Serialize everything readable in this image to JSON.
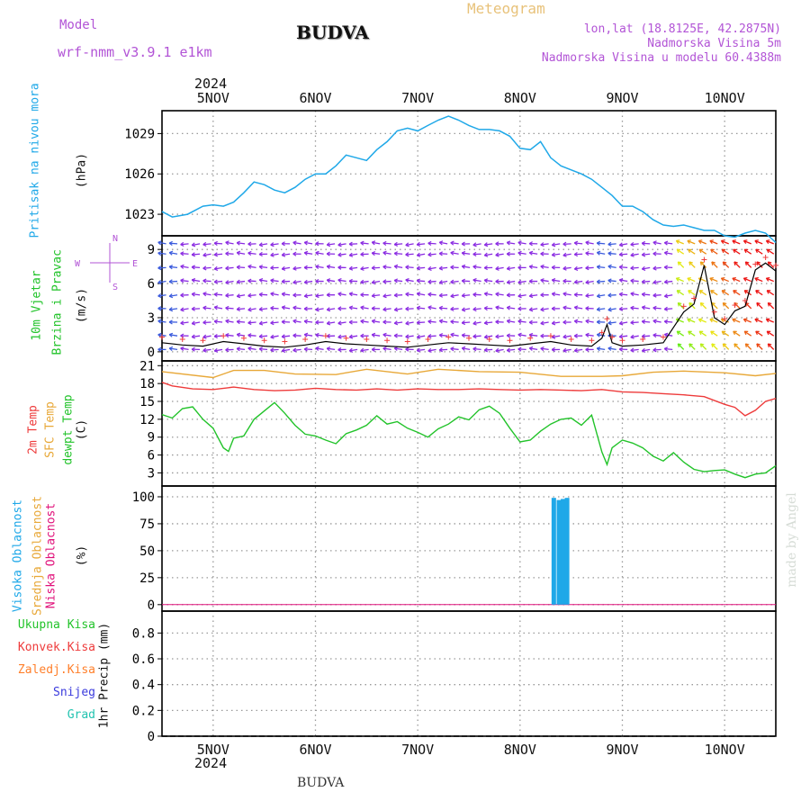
{
  "header": {
    "model_label": "Model",
    "model_name": "wrf-nmm_v3.9.1 e1km",
    "title": "BUDVA",
    "product": "Meteogram",
    "lonlat": "lon,lat (18.8125E, 42.2875N)",
    "elevation": "Nadmorska Visina 5m",
    "model_elevation": "Nadmorska Visina u modelu 60.4388m",
    "footer_title": "BUDVA",
    "watermark": "made by Angel"
  },
  "time_axis": {
    "year": "2024",
    "days": [
      "5NOV",
      "6NOV",
      "7NOV",
      "8NOV",
      "9NOV",
      "10NOV"
    ],
    "range_days": [
      4.5,
      10.5
    ]
  },
  "colors": {
    "pressure": "#1fa8e8",
    "wind_title": "#22c32a",
    "wind_arrows": "#8a2be2",
    "temp2m": "#ee3b3b",
    "sfc": "#e8a838",
    "dewpt": "#22c32a",
    "high_cloud": "#1fa8e8",
    "mid_cloud": "#e8a838",
    "low_cloud": "#e0107a",
    "rain": "#22c32a",
    "conv": "#ee3b3b",
    "freezing": "#ff7f2a",
    "snow": "#3b3bdd",
    "hail": "#22c3b0",
    "header_purple": "#b254d6"
  },
  "chart_data": [
    {
      "type": "line",
      "id": "pressure",
      "ylabel": [
        "Pritisak na nivou mora",
        "(hPa)"
      ],
      "yticks": [
        1023,
        1026,
        1029
      ],
      "ylim": [
        1021.4,
        1030.7
      ],
      "series": [
        {
          "name": "Pritisak na nivou mora",
          "x": [
            4.5,
            4.6,
            4.75,
            4.9,
            5.0,
            5.1,
            5.2,
            5.3,
            5.4,
            5.5,
            5.6,
            5.7,
            5.8,
            5.9,
            6.0,
            6.1,
            6.2,
            6.3,
            6.4,
            6.5,
            6.6,
            6.7,
            6.8,
            6.9,
            7.0,
            7.1,
            7.2,
            7.3,
            7.4,
            7.5,
            7.6,
            7.7,
            7.8,
            7.9,
            8.0,
            8.1,
            8.2,
            8.3,
            8.4,
            8.5,
            8.6,
            8.7,
            8.8,
            8.9,
            9.0,
            9.1,
            9.2,
            9.3,
            9.4,
            9.5,
            9.6,
            9.7,
            9.8,
            9.9,
            10.0,
            10.1,
            10.2,
            10.3,
            10.4,
            10.5
          ],
          "values": [
            1023.2,
            1022.8,
            1023.0,
            1023.6,
            1023.7,
            1023.6,
            1023.9,
            1024.6,
            1025.4,
            1025.2,
            1024.8,
            1024.6,
            1025.0,
            1025.6,
            1026.0,
            1026.0,
            1026.6,
            1027.4,
            1027.2,
            1027.0,
            1027.8,
            1028.4,
            1029.2,
            1029.4,
            1029.2,
            1029.6,
            1030.0,
            1030.3,
            1030.0,
            1029.6,
            1029.3,
            1029.3,
            1029.2,
            1028.8,
            1027.9,
            1027.8,
            1028.4,
            1027.2,
            1026.6,
            1026.3,
            1026.0,
            1025.6,
            1025.0,
            1024.4,
            1023.6,
            1023.6,
            1023.2,
            1022.6,
            1022.2,
            1022.1,
            1022.2,
            1022.0,
            1021.8,
            1021.8,
            1021.4,
            1021.3,
            1021.6,
            1021.8,
            1021.6,
            1020.9
          ]
        }
      ]
    },
    {
      "type": "line",
      "id": "wind",
      "ylabel": [
        "10m Vjetar",
        "Brzina i Pravac",
        "(m/s)"
      ],
      "compass": {
        "n": "N",
        "e": "E",
        "s": "S",
        "w": "W"
      },
      "yticks": [
        0,
        3,
        6,
        9
      ],
      "ylim": [
        -0.8,
        10.2
      ],
      "arrow_levels": [
        0.2,
        1.4,
        2.6,
        3.8,
        5.0,
        6.2,
        7.4,
        8.6,
        9.5
      ],
      "series": [
        {
          "name": "10m Vjetar",
          "x": [
            4.5,
            4.7,
            4.9,
            5.1,
            5.3,
            5.5,
            5.7,
            5.9,
            6.1,
            6.3,
            6.5,
            6.7,
            6.9,
            7.1,
            7.3,
            7.5,
            7.7,
            7.9,
            8.1,
            8.3,
            8.5,
            8.7,
            8.8,
            8.85,
            8.9,
            9.0,
            9.2,
            9.4,
            9.6,
            9.7,
            9.8,
            9.9,
            10.0,
            10.1,
            10.2,
            10.3,
            10.4,
            10.5
          ],
          "values": [
            0.8,
            0.6,
            0.5,
            0.9,
            0.7,
            0.5,
            0.4,
            0.6,
            0.9,
            0.7,
            0.6,
            0.5,
            0.4,
            0.6,
            0.8,
            0.7,
            0.6,
            0.5,
            0.7,
            0.9,
            0.6,
            0.5,
            1.2,
            2.4,
            0.8,
            0.5,
            0.6,
            0.8,
            3.5,
            4.2,
            7.6,
            3.0,
            2.4,
            3.6,
            4.0,
            7.2,
            7.8,
            7.1
          ]
        }
      ]
    },
    {
      "type": "line",
      "id": "temperature",
      "ylabel": [
        "2m Temp",
        "SFC Temp",
        "dewpt Temp",
        "(C)"
      ],
      "yticks": [
        3,
        6,
        9,
        12,
        15,
        18,
        21
      ],
      "ylim": [
        0.8,
        21.8
      ],
      "series": [
        {
          "name": "SFC Temp",
          "x": [
            4.5,
            5.0,
            5.2,
            5.5,
            5.8,
            6.2,
            6.5,
            6.9,
            7.2,
            7.6,
            8.0,
            8.4,
            8.8,
            9.0,
            9.3,
            9.6,
            10.0,
            10.3,
            10.5
          ],
          "values": [
            20.0,
            19.0,
            20.2,
            20.2,
            19.6,
            19.5,
            20.4,
            19.6,
            20.4,
            20.0,
            19.9,
            19.2,
            19.2,
            19.3,
            19.9,
            20.1,
            19.8,
            19.3,
            19.7
          ]
        },
        {
          "name": "2m Temp",
          "x": [
            4.5,
            4.6,
            4.8,
            5.0,
            5.2,
            5.4,
            5.6,
            5.8,
            6.0,
            6.2,
            6.4,
            6.6,
            6.8,
            7.0,
            7.2,
            7.4,
            7.6,
            7.8,
            8.0,
            8.2,
            8.4,
            8.6,
            8.8,
            9.0,
            9.2,
            9.4,
            9.6,
            9.8,
            10.0,
            10.1,
            10.2,
            10.3,
            10.4,
            10.5
          ],
          "values": [
            18.2,
            17.6,
            17.1,
            17.0,
            17.4,
            17.0,
            16.8,
            16.9,
            17.2,
            17.0,
            16.9,
            17.1,
            16.9,
            17.1,
            17.0,
            17.0,
            17.1,
            17.0,
            16.9,
            17.0,
            16.9,
            16.8,
            17.0,
            16.6,
            16.5,
            16.3,
            16.1,
            15.8,
            14.5,
            14.0,
            12.6,
            13.5,
            15.0,
            15.5
          ]
        },
        {
          "name": "dewpt Temp",
          "x": [
            4.5,
            4.6,
            4.7,
            4.8,
            4.9,
            5.0,
            5.1,
            5.15,
            5.2,
            5.3,
            5.4,
            5.5,
            5.6,
            5.7,
            5.8,
            5.9,
            6.0,
            6.1,
            6.2,
            6.3,
            6.4,
            6.5,
            6.6,
            6.7,
            6.8,
            6.9,
            7.0,
            7.1,
            7.2,
            7.3,
            7.4,
            7.5,
            7.6,
            7.7,
            7.8,
            7.9,
            8.0,
            8.1,
            8.2,
            8.3,
            8.4,
            8.5,
            8.6,
            8.7,
            8.8,
            8.85,
            8.9,
            9.0,
            9.1,
            9.2,
            9.3,
            9.4,
            9.5,
            9.6,
            9.7,
            9.8,
            9.9,
            10.0,
            10.1,
            10.2,
            10.3,
            10.4,
            10.5
          ],
          "values": [
            12.8,
            12.2,
            13.8,
            14.1,
            12.0,
            10.5,
            7.2,
            6.6,
            8.8,
            9.2,
            12.0,
            13.4,
            14.8,
            13.0,
            11.0,
            9.5,
            9.2,
            8.5,
            7.9,
            9.6,
            10.2,
            11.0,
            12.6,
            11.2,
            11.6,
            10.5,
            9.8,
            9.0,
            10.4,
            11.2,
            12.4,
            11.9,
            13.6,
            14.2,
            13.0,
            10.5,
            8.2,
            8.5,
            10.0,
            11.2,
            12.0,
            12.2,
            11.0,
            12.7,
            6.5,
            4.4,
            7.2,
            8.5,
            8.0,
            7.2,
            5.8,
            5.0,
            6.4,
            4.8,
            3.6,
            3.2,
            3.4,
            3.5,
            2.8,
            2.2,
            2.8,
            3.0,
            4.2
          ]
        }
      ]
    },
    {
      "type": "bar",
      "id": "cloud",
      "ylabel": [
        "Visoka Oblacnost",
        "Srednja Oblacnost",
        "Niska Oblacnost",
        "(%)"
      ],
      "yticks": [
        0,
        25,
        50,
        75,
        100
      ],
      "ylim": [
        -6,
        110
      ],
      "series": [
        {
          "name": "Visoka Oblacnost",
          "x": [
            8.33,
            8.38,
            8.42,
            8.46
          ],
          "values": [
            99,
            97,
            98,
            99
          ]
        },
        {
          "name": "Srednja Oblacnost",
          "x": [],
          "values": []
        },
        {
          "name": "Niska Oblacnost",
          "x": [],
          "values": []
        }
      ]
    },
    {
      "type": "bar",
      "id": "precip",
      "ylabel": [
        "1hr Precip (mm)"
      ],
      "legend": [
        "Ukupna Kisa",
        "Konvek.Kisa",
        "Zaledj.Kisa",
        "Snijeg",
        "Grad"
      ],
      "yticks": [
        0,
        0.2,
        0.4,
        0.6,
        0.8
      ],
      "ylim": [
        0,
        0.97
      ],
      "series": []
    }
  ]
}
